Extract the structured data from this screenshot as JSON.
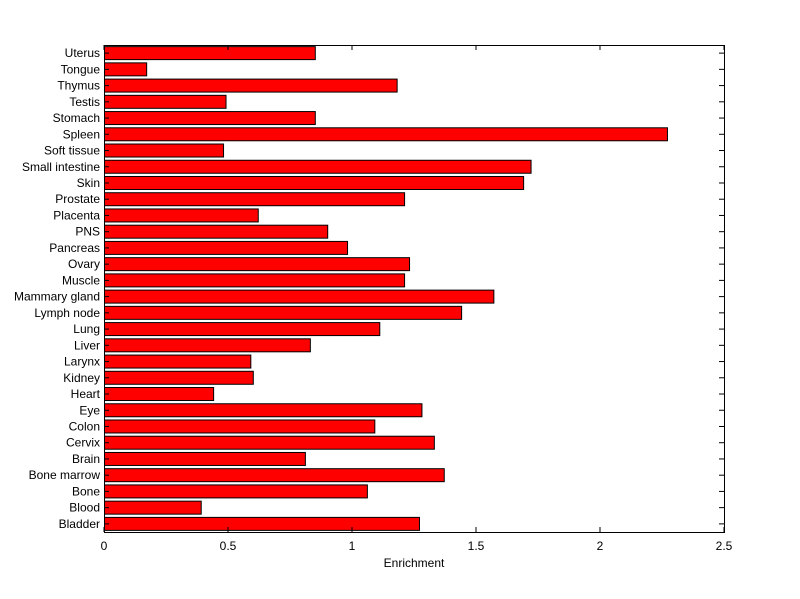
{
  "chart_data": {
    "type": "bar",
    "orientation": "horizontal",
    "title": "",
    "xlabel": "Enrichment",
    "ylabel": "",
    "xlim": [
      0,
      2.5
    ],
    "xticks": [
      0,
      0.5,
      1,
      1.5,
      2,
      2.5
    ],
    "xtick_labels": [
      "0",
      "0.5",
      "1",
      "1.5",
      "2",
      "2.5"
    ],
    "grid": false,
    "legend": "none",
    "bar_color": "#ff0000",
    "edge_color": "#000000",
    "categories": [
      "Uterus",
      "Tongue",
      "Thymus",
      "Testis",
      "Stomach",
      "Spleen",
      "Soft tissue",
      "Small intestine",
      "Skin",
      "Prostate",
      "Placenta",
      "PNS",
      "Pancreas",
      "Ovary",
      "Muscle",
      "Mammary gland",
      "Lymph node",
      "Lung",
      "Liver",
      "Larynx",
      "Kidney",
      "Heart",
      "Eye",
      "Colon",
      "Cervix",
      "Brain",
      "Bone marrow",
      "Bone",
      "Blood",
      "Bladder"
    ],
    "values": [
      0.85,
      0.17,
      1.18,
      0.49,
      0.85,
      2.27,
      0.48,
      1.72,
      1.69,
      1.21,
      0.62,
      0.9,
      0.98,
      1.23,
      1.21,
      1.57,
      1.44,
      1.11,
      0.83,
      0.59,
      0.6,
      0.44,
      1.28,
      1.09,
      1.33,
      0.81,
      1.37,
      1.06,
      0.39,
      1.27
    ]
  }
}
